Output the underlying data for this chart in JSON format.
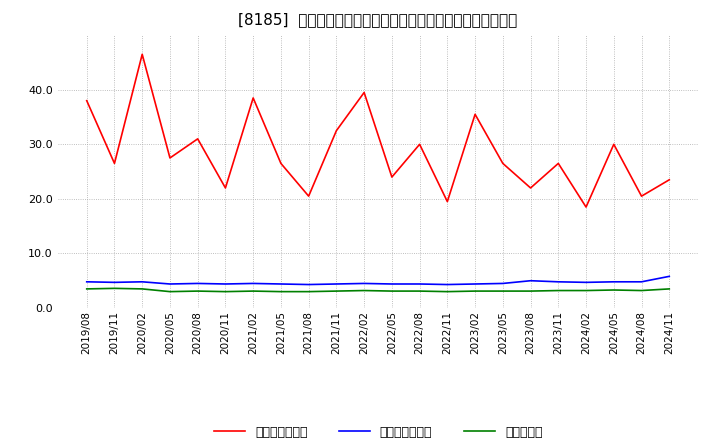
{
  "title": "[8185]  売上債権回転率、買入債務回転率、在庫回転率の推移",
  "x_labels": [
    "2019/08",
    "2019/11",
    "2020/02",
    "2020/05",
    "2020/08",
    "2020/11",
    "2021/02",
    "2021/05",
    "2021/08",
    "2021/11",
    "2022/02",
    "2022/05",
    "2022/08",
    "2022/11",
    "2023/02",
    "2023/05",
    "2023/08",
    "2023/11",
    "2024/02",
    "2024/05",
    "2024/08",
    "2024/11"
  ],
  "receivables_turnover": [
    38.0,
    26.5,
    46.5,
    27.5,
    31.0,
    22.0,
    38.5,
    26.5,
    20.5,
    32.5,
    39.5,
    24.0,
    30.0,
    19.5,
    35.5,
    26.5,
    22.0,
    26.5,
    18.5,
    30.0,
    20.5,
    23.5
  ],
  "payables_turnover": [
    4.8,
    4.7,
    4.8,
    4.4,
    4.5,
    4.4,
    4.5,
    4.4,
    4.3,
    4.4,
    4.5,
    4.4,
    4.4,
    4.3,
    4.4,
    4.5,
    5.0,
    4.8,
    4.7,
    4.8,
    4.8,
    5.8
  ],
  "inventory_turnover": [
    3.5,
    3.6,
    3.5,
    3.0,
    3.1,
    3.0,
    3.1,
    3.0,
    3.0,
    3.1,
    3.2,
    3.1,
    3.1,
    3.0,
    3.1,
    3.1,
    3.1,
    3.2,
    3.2,
    3.3,
    3.2,
    3.5
  ],
  "line_colors": [
    "#ff0000",
    "#0000ff",
    "#008000"
  ],
  "legend_labels": [
    "売上債権回転率",
    "買入債務回転率",
    "在庫回転率"
  ],
  "ylim": [
    0.0,
    50.0
  ],
  "yticks": [
    0.0,
    10.0,
    20.0,
    30.0,
    40.0
  ],
  "background_color": "#ffffff",
  "grid_color": "#aaaaaa",
  "title_fontsize": 11,
  "tick_fontsize": 7.5,
  "ytick_fontsize": 8
}
